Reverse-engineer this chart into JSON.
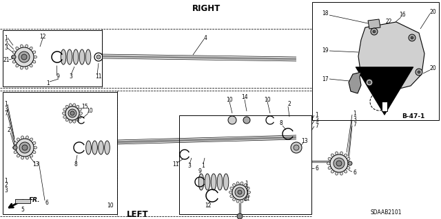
{
  "bg_color": "#ffffff",
  "right_label": "RIGHT",
  "left_label": "LEFT",
  "fr_label": "FR.",
  "diagram_code": "SDAAB2101",
  "ref_code": "B-47-1",
  "gray_part": "#888888",
  "light_gray": "#cccccc",
  "mid_gray": "#aaaaaa",
  "dark_gray": "#555555"
}
